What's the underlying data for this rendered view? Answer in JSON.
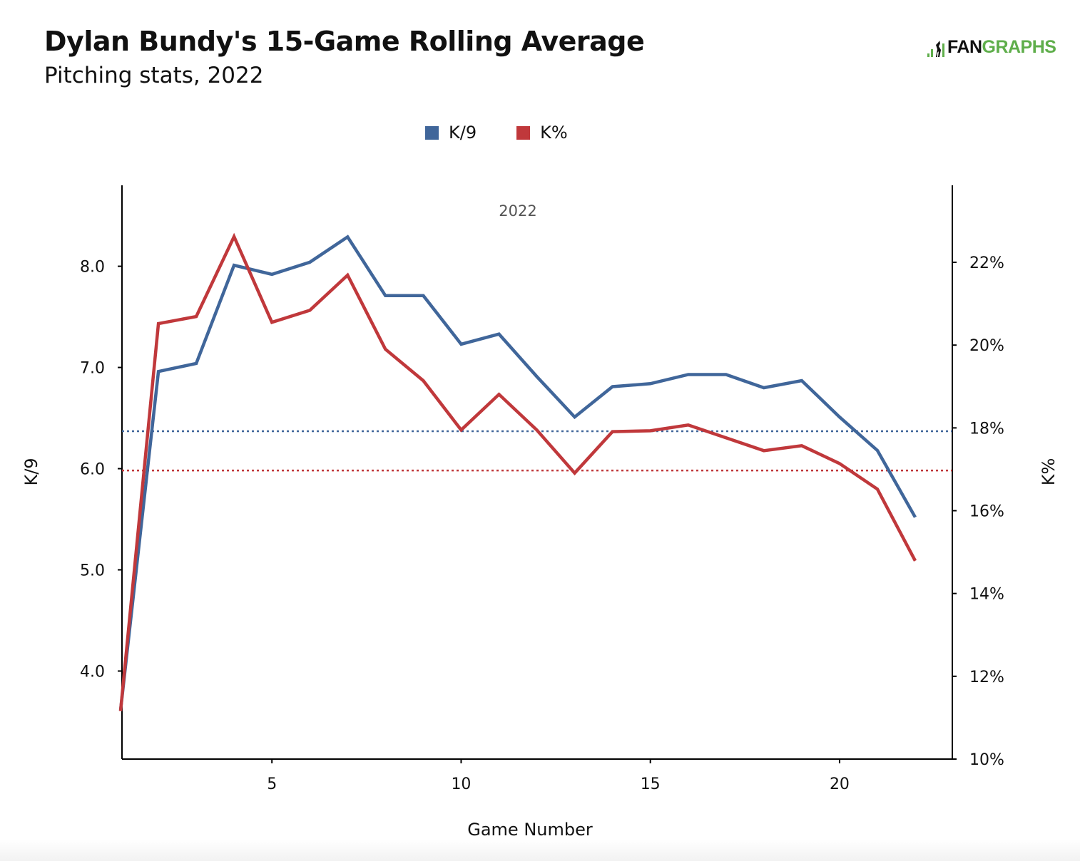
{
  "title": "Dylan Bundy's 15-Game Rolling Average",
  "subtitle": "Pitching stats, 2022",
  "logo": {
    "prefix": "FAN",
    "suffix": "GRAPHS"
  },
  "colors": {
    "k9": "#40669a",
    "kpct": "#c0383b",
    "logo_green": "#5fae4b"
  },
  "chart_data": {
    "type": "line",
    "title": "Dylan Bundy's 15-Game Rolling Average",
    "annotation": "2022",
    "xlabel": "Game Number",
    "ylabel": "K/9",
    "y2label": "K%",
    "xlim": [
      1,
      23
    ],
    "ylim": [
      3.13,
      8.8
    ],
    "y2lim": [
      10,
      23.86
    ],
    "xticks": [
      5,
      10,
      15,
      20
    ],
    "yticks": [
      4.0,
      5.0,
      6.0,
      7.0,
      8.0
    ],
    "ytick_labels": [
      "4.0",
      "5.0",
      "6.0",
      "7.0",
      "8.0"
    ],
    "y2ticks": [
      10,
      12,
      14,
      16,
      18,
      20,
      22
    ],
    "y2tick_labels": [
      "10%",
      "12%",
      "14%",
      "16%",
      "18%",
      "20%",
      "22%"
    ],
    "legend": {
      "position": "top-center",
      "entries": [
        "K/9",
        "K%"
      ]
    },
    "x": [
      1,
      2,
      3,
      4,
      5,
      6,
      7,
      8,
      9,
      10,
      11,
      12,
      13,
      14,
      15,
      16,
      17,
      18,
      19,
      20,
      21,
      22
    ],
    "series": [
      {
        "name": "K/9",
        "axis": "left",
        "values": [
          3.61,
          6.96,
          7.04,
          8.01,
          7.92,
          8.04,
          8.29,
          7.71,
          7.71,
          7.23,
          7.33,
          6.91,
          6.51,
          6.81,
          6.84,
          6.93,
          6.93,
          6.8,
          6.87,
          6.51,
          6.18,
          5.52
        ]
      },
      {
        "name": "K%",
        "axis": "right",
        "values": [
          11.16,
          20.52,
          20.69,
          22.62,
          20.55,
          20.84,
          21.69,
          19.9,
          19.14,
          17.95,
          18.81,
          17.95,
          16.91,
          17.91,
          17.93,
          18.07,
          17.76,
          17.45,
          17.57,
          17.14,
          16.52,
          14.79
        ]
      }
    ],
    "reference_lines": [
      {
        "series": "K/9",
        "axis": "left",
        "value": 6.37,
        "style": "dotted"
      },
      {
        "series": "K%",
        "axis": "right",
        "value": 16.97,
        "style": "dotted"
      }
    ]
  }
}
